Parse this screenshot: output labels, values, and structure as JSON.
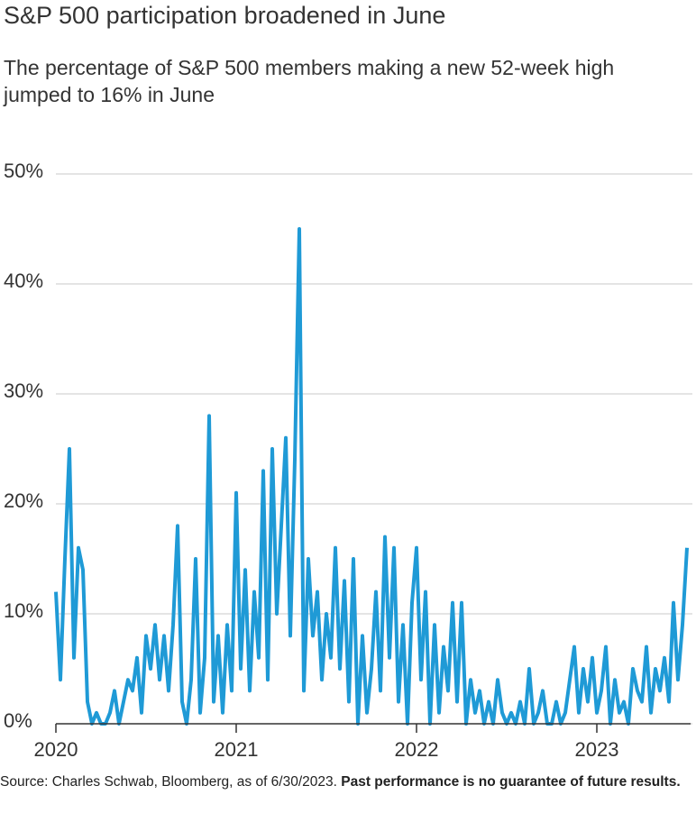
{
  "chart_data": {
    "type": "line",
    "title": "S&P 500 participation broadened in June",
    "subtitle": "The percentage of S&P 500 members making a new 52-week high jumped to 16% in June",
    "source": "Source: Charles Schwab, Bloomberg, as of 6/30/2023.",
    "disclaimer": "Past performance is no guarantee of future results.",
    "xlim": [
      2020,
      2023.5
    ],
    "xticks": [
      2020,
      2021,
      2022,
      2023
    ],
    "ylim": [
      0,
      50
    ],
    "yticks": [
      {
        "value": 0,
        "label": "0%"
      },
      {
        "value": 10,
        "label": "10%"
      },
      {
        "value": 20,
        "label": "20%"
      },
      {
        "value": 30,
        "label": "30%"
      },
      {
        "value": 40,
        "label": "40%"
      },
      {
        "value": 50,
        "label": "50%"
      }
    ],
    "grid": true,
    "x": [
      2020,
      2020.025,
      2020.05,
      2020.075,
      2020.1,
      2020.125,
      2020.15,
      2020.175,
      2020.2,
      2020.225,
      2020.25,
      2020.275,
      2020.3,
      2020.325,
      2020.35,
      2020.375,
      2020.4,
      2020.425,
      2020.45,
      2020.475,
      2020.5,
      2020.525,
      2020.55,
      2020.575,
      2020.6,
      2020.625,
      2020.65,
      2020.675,
      2020.7,
      2020.725,
      2020.75,
      2020.775,
      2020.8,
      2020.825,
      2020.85,
      2020.875,
      2020.9,
      2020.925,
      2020.95,
      2020.975,
      2021,
      2021.025,
      2021.05,
      2021.075,
      2021.1,
      2021.125,
      2021.15,
      2021.175,
      2021.2,
      2021.225,
      2021.25,
      2021.275,
      2021.3,
      2021.325,
      2021.35,
      2021.375,
      2021.4,
      2021.425,
      2021.45,
      2021.475,
      2021.5,
      2021.525,
      2021.55,
      2021.575,
      2021.6,
      2021.625,
      2021.65,
      2021.675,
      2021.7,
      2021.725,
      2021.75,
      2021.775,
      2021.8,
      2021.825,
      2021.85,
      2021.875,
      2021.9,
      2021.925,
      2021.95,
      2021.975,
      2022,
      2022.025,
      2022.05,
      2022.075,
      2022.1,
      2022.125,
      2022.15,
      2022.175,
      2022.2,
      2022.225,
      2022.25,
      2022.275,
      2022.3,
      2022.325,
      2022.35,
      2022.375,
      2022.4,
      2022.425,
      2022.45,
      2022.475,
      2022.5,
      2022.525,
      2022.55,
      2022.575,
      2022.6,
      2022.625,
      2022.65,
      2022.675,
      2022.7,
      2022.725,
      2022.75,
      2022.775,
      2022.8,
      2022.825,
      2022.85,
      2022.875,
      2022.9,
      2022.925,
      2022.95,
      2022.975,
      2023,
      2023.025,
      2023.05,
      2023.075,
      2023.1,
      2023.125,
      2023.15,
      2023.175,
      2023.2,
      2023.225,
      2023.25,
      2023.275,
      2023.3,
      2023.325,
      2023.35,
      2023.375,
      2023.4,
      2023.425,
      2023.45,
      2023.475,
      2023.5
    ],
    "series": [
      {
        "color": "#1f9ad6",
        "values": [
          12,
          4,
          15,
          25,
          6,
          16,
          14,
          2,
          0,
          1,
          0,
          0,
          1,
          3,
          0,
          2,
          4,
          3,
          6,
          1,
          8,
          5,
          9,
          4,
          8,
          3,
          9,
          18,
          2,
          0,
          4,
          15,
          1,
          6,
          28,
          2,
          8,
          1,
          9,
          3,
          21,
          5,
          14,
          3,
          12,
          6,
          23,
          4,
          25,
          10,
          18,
          26,
          8,
          24,
          45,
          3,
          15,
          8,
          12,
          4,
          10,
          6,
          16,
          5,
          13,
          2,
          15,
          0,
          8,
          1,
          5,
          12,
          3,
          17,
          6,
          16,
          2,
          9,
          0,
          11,
          16,
          4,
          12,
          0,
          9,
          1,
          7,
          3,
          11,
          2,
          11,
          0,
          4,
          1,
          3,
          0,
          2,
          0,
          4,
          1,
          0,
          1,
          0,
          2,
          0,
          5,
          0,
          1,
          3,
          0,
          0,
          2,
          0,
          1,
          4,
          7,
          1,
          5,
          2,
          6,
          1,
          3,
          7,
          0,
          4,
          1,
          2,
          0,
          5,
          3,
          2,
          7,
          1,
          5,
          3,
          6,
          2,
          11,
          4,
          9,
          16
        ]
      }
    ]
  }
}
